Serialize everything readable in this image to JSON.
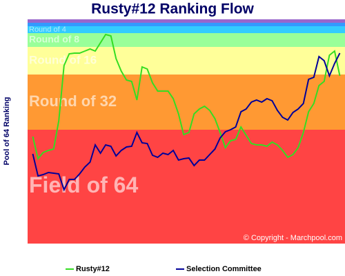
{
  "chart_data": {
    "type": "line",
    "title": "Rusty#12 Ranking Flow",
    "y_label": "Pool of 64 Ranking",
    "copyright": "© Copyright - Marchpool.com",
    "ylim": [
      65,
      0
    ],
    "bands": [
      {
        "from": 0,
        "to": 1,
        "color": "#9966cc"
      },
      {
        "from": 1,
        "to": 2,
        "color": "#3399ff"
      },
      {
        "from": 2,
        "to": 4,
        "color": "#33ccff",
        "label": "Round of 4"
      },
      {
        "from": 4,
        "to": 8,
        "color": "#99ff99",
        "label": "Round of 8"
      },
      {
        "from": 8,
        "to": 16,
        "color": "#ffff99",
        "label": "Round of 16"
      },
      {
        "from": 16,
        "to": 32,
        "color": "#ff9933",
        "label": "Round of 32"
      },
      {
        "from": 32,
        "to": 65,
        "color": "#ff4444",
        "label": "Field of 64"
      }
    ],
    "series": [
      {
        "name": "Rusty#12",
        "color": "#33dd22",
        "values": [
          34,
          40.4,
          38.6,
          38,
          37.6,
          29.4,
          13.4,
          10,
          9.8,
          9.8,
          9.2,
          8.6,
          9.2,
          6.8,
          4.4,
          4.8,
          11.4,
          15,
          17.6,
          18,
          23.4,
          13.8,
          14.4,
          18.4,
          20.8,
          20.8,
          20.8,
          23,
          27.4,
          33.4,
          32.8,
          27.4,
          26,
          25.2,
          26.4,
          28.8,
          32.8,
          37.2,
          35.2,
          34.8,
          31.2,
          33.6,
          36,
          36.4,
          36.4,
          36.8,
          35.6,
          36.4,
          38,
          40,
          39.2,
          37.2,
          32.8,
          26.8,
          24.4,
          19.2,
          18,
          10.4,
          9.2,
          16.4
        ]
      },
      {
        "name": "Selection Committee",
        "color": "#000099",
        "values": [
          39,
          45.4,
          45,
          44.4,
          44.6,
          44.8,
          49.4,
          46.4,
          46.4,
          44.8,
          42.8,
          41.4,
          36.4,
          38.8,
          36.4,
          36.8,
          39.6,
          38,
          37,
          36.8,
          32.8,
          35.8,
          36,
          39.4,
          40,
          38.8,
          39.2,
          38,
          40.8,
          40.4,
          40.2,
          42.4,
          40.8,
          40.8,
          39.2,
          37.6,
          34.4,
          32.6,
          32,
          31.2,
          26.8,
          26,
          24,
          23.4,
          24,
          23,
          23.6,
          26.4,
          28.4,
          29.2,
          27,
          26,
          24.4,
          17.4,
          16.8,
          10.8,
          12,
          16.4,
          12.8,
          9.8
        ]
      }
    ]
  }
}
